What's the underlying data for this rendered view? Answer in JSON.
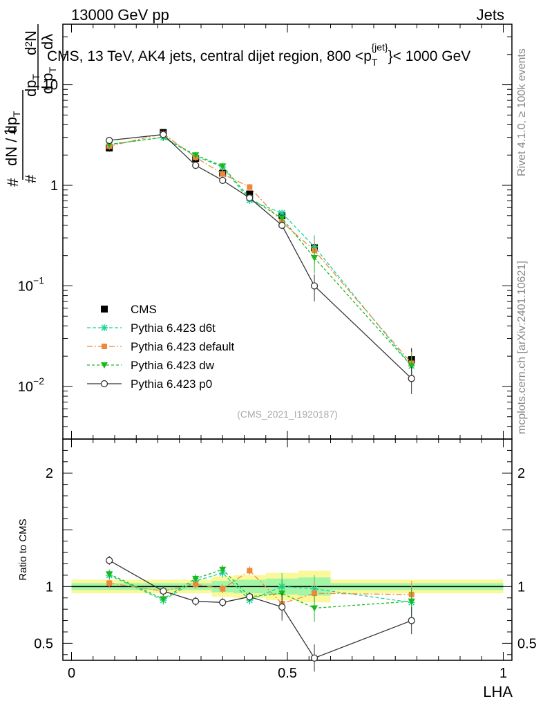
{
  "header": {
    "left": "13000 GeV pp",
    "right": "Jets"
  },
  "side": {
    "rivet": "Rivet 4.1.0, ≥ 100k events",
    "mcplots": "mcplots.cern.ch [arXiv:2401.10621]"
  },
  "watermark": "(CMS_2021_I1920187)",
  "chart_data": [
    {
      "type": "line",
      "panel": "main",
      "title": "CMS, 13 TeV, AK4 jets, central dijet region, 800 <p_T^{jet}< 1000 GeV",
      "ylabel": "1/(dN/dpT) d²N/(dpT dλ)",
      "yscale": "log",
      "ylim": [
        0.003,
        40
      ],
      "xlim": [
        -0.02,
        1.02
      ],
      "y_ticks": [
        {
          "value": 0.01,
          "label": "10",
          "exp": "−2"
        },
        {
          "value": 0.1,
          "label": "10",
          "exp": "−1"
        },
        {
          "value": 1,
          "label": "1",
          "exp": ""
        },
        {
          "value": 10,
          "label": "10",
          "exp": ""
        }
      ],
      "x": [
        0.0875,
        0.2125,
        0.2875,
        0.35,
        0.4125,
        0.4875,
        0.5625,
        0.7875
      ],
      "series": [
        {
          "name": "CMS",
          "color": "#000000",
          "values": [
            2.35,
            3.35,
            1.85,
            1.32,
            0.82,
            0.5,
            0.24,
            0.0185
          ]
        },
        {
          "name": "Pythia 6.423 d6t",
          "color": "#17d39a",
          "values": [
            2.55,
            3.0,
            1.95,
            1.52,
            0.71,
            0.53,
            0.245,
            0.016
          ]
        },
        {
          "name": "Pythia 6.423 default",
          "color": "#f0883a",
          "values": [
            2.45,
            3.25,
            1.9,
            1.3,
            0.96,
            0.43,
            0.225,
            0.017
          ]
        },
        {
          "name": "Pythia 6.423 dw",
          "color": "#1cb81c",
          "values": [
            2.55,
            3.0,
            2.0,
            1.55,
            0.75,
            0.47,
            0.19,
            0.016
          ]
        },
        {
          "name": "Pythia 6.423 p0",
          "color": "#333333",
          "values": [
            2.8,
            3.2,
            1.58,
            1.12,
            0.75,
            0.4,
            0.1,
            0.012
          ]
        }
      ]
    },
    {
      "type": "line",
      "panel": "ratio",
      "ylabel": "Ratio to CMS",
      "ylim": [
        0.35,
        2.3
      ],
      "xlim": [
        -0.02,
        1.02
      ],
      "xlabel": "LHA",
      "x_ticks": [
        {
          "value": 0,
          "label": "0"
        },
        {
          "value": 0.5,
          "label": "0.5"
        },
        {
          "value": 1,
          "label": "1"
        }
      ],
      "y_ticks": [
        {
          "value": 0.5,
          "label": "0.5"
        },
        {
          "value": 1,
          "label": "1"
        },
        {
          "value": 2,
          "label": "2"
        }
      ],
      "x": [
        0.0875,
        0.2125,
        0.2875,
        0.35,
        0.4125,
        0.4875,
        0.5625,
        0.7875
      ],
      "series": [
        {
          "name": "Pythia 6.423 d6t",
          "color": "#17d39a",
          "values": [
            1.1,
            0.88,
            1.05,
            1.12,
            0.88,
            1.0,
            0.98,
            0.86
          ]
        },
        {
          "name": "Pythia 6.423 default",
          "color": "#f0883a",
          "values": [
            1.03,
            0.96,
            1.02,
            0.98,
            1.14,
            0.85,
            0.94,
            0.93
          ]
        },
        {
          "name": "Pythia 6.423 dw",
          "color": "#1cb81c",
          "values": [
            1.11,
            0.89,
            1.07,
            1.15,
            0.91,
            0.94,
            0.81,
            0.87
          ]
        },
        {
          "name": "Pythia 6.423 p0",
          "color": "#333333",
          "values": [
            1.23,
            0.96,
            0.87,
            0.86,
            0.91,
            0.82,
            0.37,
            0.7
          ]
        }
      ],
      "bands": {
        "x_edges": [
          0.0,
          0.25,
          0.325,
          0.375,
          0.45,
          0.525,
          0.6,
          1.0
        ],
        "yellow_half_width": [
          0.06,
          0.06,
          0.09,
          0.1,
          0.12,
          0.14,
          0.06
        ],
        "green_half_width": [
          0.03,
          0.03,
          0.05,
          0.06,
          0.07,
          0.08,
          0.03
        ]
      }
    }
  ]
}
